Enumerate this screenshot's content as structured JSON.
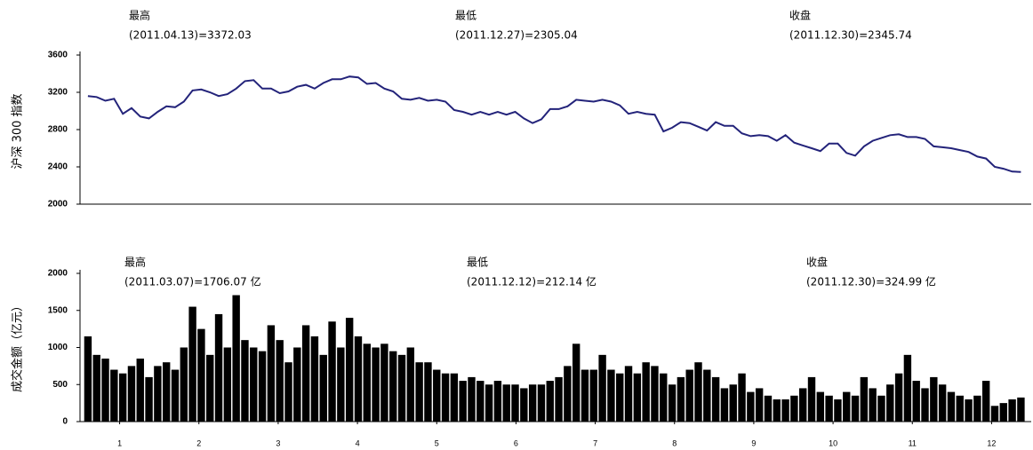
{
  "chart_data": [
    {
      "type": "line",
      "ylabel": "沪深 300 指数",
      "annotations": [
        [
          "最高",
          "(2011.04.13)=3372.03"
        ],
        [
          "最低",
          "(2011.12.27)=2305.04"
        ],
        [
          "收盘",
          "(2011.12.30)=2345.74"
        ]
      ],
      "xlim": [
        0,
        12
      ],
      "ylim": [
        2000,
        3600
      ],
      "yticks": [
        2000,
        2400,
        2800,
        3200,
        3600
      ],
      "color": "#23237a",
      "x": [
        0.1,
        0.21,
        0.32,
        0.43,
        0.54,
        0.65,
        0.76,
        0.87,
        0.98,
        1.09,
        1.2,
        1.31,
        1.42,
        1.53,
        1.64,
        1.75,
        1.86,
        1.97,
        2.08,
        2.19,
        2.3,
        2.41,
        2.52,
        2.63,
        2.74,
        2.85,
        2.96,
        3.07,
        3.18,
        3.29,
        3.4,
        3.51,
        3.62,
        3.73,
        3.84,
        3.95,
        4.06,
        4.17,
        4.28,
        4.39,
        4.5,
        4.61,
        4.72,
        4.83,
        4.94,
        5.05,
        5.16,
        5.27,
        5.38,
        5.49,
        5.6,
        5.71,
        5.82,
        5.93,
        6.04,
        6.15,
        6.26,
        6.37,
        6.48,
        6.59,
        6.7,
        6.81,
        6.92,
        7.03,
        7.14,
        7.25,
        7.36,
        7.47,
        7.58,
        7.69,
        7.8,
        7.91,
        8.02,
        8.13,
        8.24,
        8.35,
        8.46,
        8.57,
        8.68,
        8.79,
        8.9,
        9.01,
        9.12,
        9.23,
        9.34,
        9.45,
        9.56,
        9.67,
        9.78,
        9.89,
        10.0,
        10.11,
        10.22,
        10.33,
        10.44,
        10.55,
        10.66,
        10.77,
        10.88,
        10.99,
        11.1,
        11.21,
        11.32,
        11.43,
        11.54,
        11.65,
        11.76,
        11.87
      ],
      "values": [
        3160,
        3150,
        3110,
        3130,
        2970,
        3030,
        2940,
        2920,
        2990,
        3050,
        3040,
        3100,
        3220,
        3230,
        3200,
        3160,
        3180,
        3240,
        3320,
        3330,
        3240,
        3240,
        3190,
        3210,
        3260,
        3280,
        3240,
        3300,
        3340,
        3340,
        3370,
        3360,
        3290,
        3300,
        3240,
        3210,
        3130,
        3120,
        3140,
        3110,
        3120,
        3100,
        3010,
        2990,
        2960,
        2990,
        2960,
        2990,
        2960,
        2990,
        2920,
        2870,
        2910,
        3020,
        3020,
        3050,
        3120,
        3110,
        3100,
        3120,
        3100,
        3060,
        2970,
        2990,
        2970,
        2960,
        2780,
        2820,
        2880,
        2870,
        2830,
        2790,
        2880,
        2840,
        2840,
        2760,
        2730,
        2740,
        2730,
        2680,
        2740,
        2660,
        2630,
        2600,
        2570,
        2650,
        2650,
        2550,
        2520,
        2620,
        2680,
        2710,
        2740,
        2750,
        2720,
        2720,
        2700,
        2620,
        2610,
        2600,
        2580,
        2560,
        2510,
        2490,
        2400,
        2380,
        2350,
        2346
      ]
    },
    {
      "type": "bar",
      "ylabel": "成交金额（亿元）",
      "annotations": [
        [
          "最高",
          "(2011.03.07)=1706.07 亿"
        ],
        [
          "最低",
          "(2011.12.12)=212.14 亿"
        ],
        [
          "收盘",
          "(2011.12.30)=324.99 亿"
        ]
      ],
      "xlim": [
        0,
        12
      ],
      "ylim": [
        0,
        2000
      ],
      "yticks": [
        0,
        500,
        1000,
        1500,
        2000
      ],
      "color": "#000000",
      "xticks": [
        {
          "value": 0.5,
          "label": "1"
        },
        {
          "value": 1.5,
          "label": "2"
        },
        {
          "value": 2.5,
          "label": "3"
        },
        {
          "value": 3.5,
          "label": "4"
        },
        {
          "value": 4.5,
          "label": "5"
        },
        {
          "value": 5.5,
          "label": "6"
        },
        {
          "value": 6.5,
          "label": "7"
        },
        {
          "value": 7.5,
          "label": "8"
        },
        {
          "value": 8.5,
          "label": "9"
        },
        {
          "value": 9.5,
          "label": "10"
        },
        {
          "value": 10.5,
          "label": "11"
        },
        {
          "value": 11.5,
          "label": "12"
        }
      ],
      "x": [
        0.1,
        0.21,
        0.32,
        0.43,
        0.54,
        0.65,
        0.76,
        0.87,
        0.98,
        1.09,
        1.2,
        1.31,
        1.42,
        1.53,
        1.64,
        1.75,
        1.86,
        1.97,
        2.08,
        2.19,
        2.3,
        2.41,
        2.52,
        2.63,
        2.74,
        2.85,
        2.96,
        3.07,
        3.18,
        3.29,
        3.4,
        3.51,
        3.62,
        3.73,
        3.84,
        3.95,
        4.06,
        4.17,
        4.28,
        4.39,
        4.5,
        4.61,
        4.72,
        4.83,
        4.94,
        5.05,
        5.16,
        5.27,
        5.38,
        5.49,
        5.6,
        5.71,
        5.82,
        5.93,
        6.04,
        6.15,
        6.26,
        6.37,
        6.48,
        6.59,
        6.7,
        6.81,
        6.92,
        7.03,
        7.14,
        7.25,
        7.36,
        7.47,
        7.58,
        7.69,
        7.8,
        7.91,
        8.02,
        8.13,
        8.24,
        8.35,
        8.46,
        8.57,
        8.68,
        8.79,
        8.9,
        9.01,
        9.12,
        9.23,
        9.34,
        9.45,
        9.56,
        9.67,
        9.78,
        9.89,
        10.0,
        10.11,
        10.22,
        10.33,
        10.44,
        10.55,
        10.66,
        10.77,
        10.88,
        10.99,
        11.1,
        11.21,
        11.32,
        11.43,
        11.54,
        11.65,
        11.76,
        11.87
      ],
      "values": [
        1150,
        900,
        850,
        700,
        650,
        750,
        850,
        600,
        750,
        800,
        700,
        1000,
        1550,
        1250,
        900,
        1450,
        1000,
        1706,
        1100,
        1000,
        950,
        1300,
        1100,
        800,
        1000,
        1300,
        1150,
        900,
        1350,
        1000,
        1400,
        1150,
        1050,
        1000,
        1050,
        950,
        900,
        1000,
        800,
        800,
        700,
        650,
        650,
        550,
        600,
        550,
        500,
        550,
        500,
        500,
        450,
        500,
        500,
        550,
        600,
        750,
        1050,
        700,
        700,
        900,
        700,
        650,
        750,
        650,
        800,
        750,
        650,
        500,
        600,
        700,
        800,
        700,
        600,
        450,
        500,
        650,
        400,
        450,
        350,
        300,
        300,
        350,
        450,
        600,
        400,
        350,
        300,
        400,
        350,
        600,
        450,
        350,
        500,
        650,
        900,
        550,
        450,
        600,
        500,
        400,
        350,
        300,
        350,
        550,
        212,
        250,
        300,
        325
      ]
    }
  ]
}
